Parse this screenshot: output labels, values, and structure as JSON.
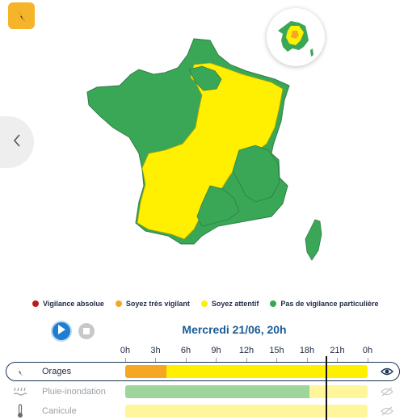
{
  "colors": {
    "green": "#3aa757",
    "yellow": "#ffef00",
    "orange": "#f5a623",
    "red": "#d0021b",
    "accent": "#1a5c96"
  },
  "icons": {
    "header": "lightning-bolt-icon",
    "prev": "chevron-left-icon",
    "play": "play-icon",
    "stop": "stop-icon"
  },
  "legend": [
    {
      "label": "Vigilance absolue",
      "color": "#c0191a"
    },
    {
      "label": "Soyez très vigilant",
      "color": "#f5a623"
    },
    {
      "label": "Soyez attentif",
      "color": "#ffef00"
    },
    {
      "label": "Pas de vigilance particulière",
      "color": "#3aa757"
    }
  ],
  "timeline": {
    "date": "Mercredi 21/06, 20h",
    "hours": [
      "0h",
      "3h",
      "6h",
      "9h",
      "12h",
      "15h",
      "18h",
      "21h",
      "0h"
    ],
    "current_fraction": 0.83
  },
  "phenomena": [
    {
      "name": "Orages",
      "icon": "lightning-bolt-icon",
      "active": true,
      "segments": [
        {
          "color": "#f5a623",
          "from": 0,
          "to": 0.17
        },
        {
          "color": "#ffef00",
          "from": 0.17,
          "to": 1
        }
      ]
    },
    {
      "name": "Pluie-inondation",
      "icon": "rain-flood-icon",
      "active": false,
      "segments": [
        {
          "color": "#9fd49a",
          "from": 0,
          "to": 0.76
        },
        {
          "color": "#fff59a",
          "from": 0.76,
          "to": 1
        }
      ]
    },
    {
      "name": "Canicule",
      "icon": "thermometer-icon",
      "active": false,
      "segments": [
        {
          "color": "#fff59a",
          "from": 0,
          "to": 1
        }
      ]
    }
  ]
}
